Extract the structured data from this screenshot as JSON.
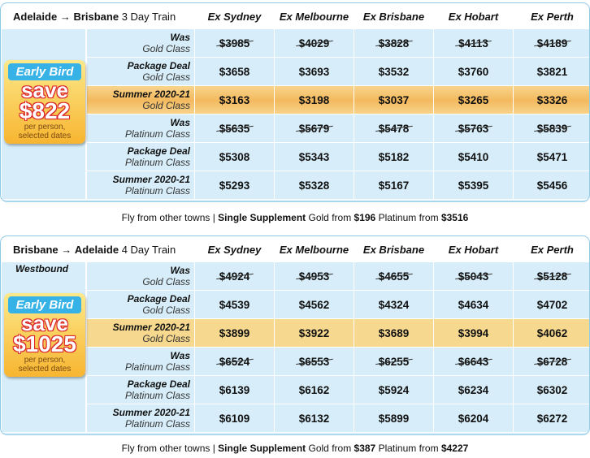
{
  "columns": [
    "Ex Sydney",
    "Ex Melbourne",
    "Ex Brisbane",
    "Ex Hobart",
    "Ex Perth"
  ],
  "tables": [
    {
      "route": {
        "from": "Adelaide",
        "arrow": "→",
        "to": "Brisbane",
        "duration": "3 Day Train"
      },
      "direction": "",
      "badge": {
        "title": "Early Bird",
        "save": "save",
        "amount": "$822",
        "sub1": "per person,",
        "sub2": "selected dates"
      },
      "rows": [
        {
          "l1": "Was",
          "l2": "Gold Class",
          "prices": [
            "$3985",
            "$4029",
            "$3828",
            "$4113",
            "$4189"
          ],
          "strike": true
        },
        {
          "l1": "Package Deal",
          "l2": "Gold Class",
          "prices": [
            "$3658",
            "$3693",
            "$3532",
            "$3760",
            "$3821"
          ]
        },
        {
          "l1": "Summer 2020-21",
          "l2": "Gold Class",
          "prices": [
            "$3163",
            "$3198",
            "$3037",
            "$3265",
            "$3326"
          ],
          "highlight": true
        },
        {
          "l1": "Was",
          "l2": "Platinum Class",
          "prices": [
            "$5635",
            "$5679",
            "$5478",
            "$5763",
            "$5839"
          ],
          "strike": true
        },
        {
          "l1": "Package Deal",
          "l2": "Platinum Class",
          "prices": [
            "$5308",
            "$5343",
            "$5182",
            "$5410",
            "$5471"
          ]
        },
        {
          "l1": "Summer 2020-21",
          "l2": "Platinum Class",
          "prices": [
            "$5293",
            "$5328",
            "$5167",
            "$5395",
            "$5456"
          ]
        }
      ],
      "footer": {
        "pre": "Fly from other towns | ",
        "bold": "Single Supplement",
        "mid1": " Gold from ",
        "gold": "$196",
        "mid2": " Platinum from ",
        "plat": "$3516"
      }
    },
    {
      "route": {
        "from": "Brisbane",
        "arrow": "→",
        "to": "Adelaide",
        "duration": "4 Day Train"
      },
      "direction": "Westbound",
      "badge": {
        "title": "Early Bird",
        "save": "save",
        "amount": "$1025",
        "sub1": "per person,",
        "sub2": "selected dates"
      },
      "rows": [
        {
          "l1": "Was",
          "l2": "Gold Class",
          "prices": [
            "$4924",
            "$4953",
            "$4655",
            "$5043",
            "$5128"
          ],
          "strike": true
        },
        {
          "l1": "Package Deal",
          "l2": "Gold Class",
          "prices": [
            "$4539",
            "$4562",
            "$4324",
            "$4634",
            "$4702"
          ]
        },
        {
          "l1": "Summer 2020-21",
          "l2": "Gold Class",
          "prices": [
            "$3899",
            "$3922",
            "$3689",
            "$3994",
            "$4062"
          ],
          "highlight": true
        },
        {
          "l1": "Was",
          "l2": "Platinum Class",
          "prices": [
            "$6524",
            "$6553",
            "$6255",
            "$6643",
            "$6728"
          ],
          "strike": true
        },
        {
          "l1": "Package Deal",
          "l2": "Platinum Class",
          "prices": [
            "$6139",
            "$6162",
            "$5924",
            "$6234",
            "$6302"
          ]
        },
        {
          "l1": "Summer 2020-21",
          "l2": "Platinum Class",
          "prices": [
            "$6109",
            "$6132",
            "$5899",
            "$6204",
            "$6272"
          ]
        }
      ],
      "footer": {
        "pre": "Fly from other towns | ",
        "bold": "Single Supplement",
        "mid1": " Gold from ",
        "gold": "$387",
        "mid2": " Platinum from ",
        "plat": "$4227"
      }
    }
  ]
}
